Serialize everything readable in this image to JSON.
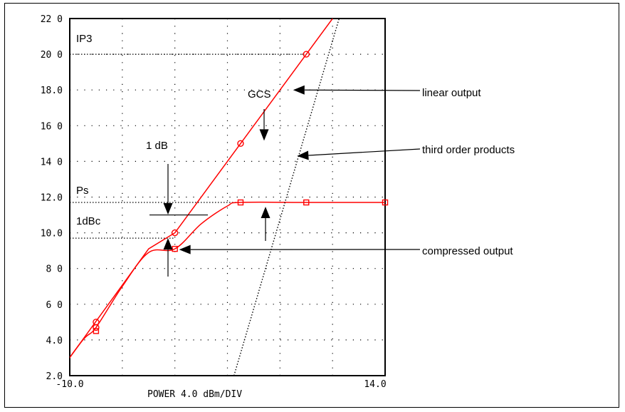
{
  "chart_data": {
    "type": "line",
    "title": "",
    "xlabel": "POWER 4.0 dBm/DIV",
    "ylabel": "",
    "xlim": [
      -10.0,
      14.0
    ],
    "ylim": [
      2.0,
      22.0
    ],
    "grid": true,
    "x_tick_labels": [
      "-10.0",
      "14.0"
    ],
    "y_tick_labels": [
      "2.0",
      "4.0",
      "6 0",
      "8 0",
      "10.0",
      "12.0",
      "14 0",
      "16 0",
      "18.0",
      "20 0",
      "22 0"
    ],
    "series": [
      {
        "key": "linear",
        "color": "#ff0000",
        "points": [
          [
            -11,
            2.0
          ],
          [
            -4,
            9.1
          ],
          [
            -2,
            10.0
          ],
          [
            3,
            15.0
          ],
          [
            8,
            20.0
          ],
          [
            10,
            22.0
          ]
        ]
      },
      {
        "key": "compressed",
        "color": "#ff0000",
        "points": [
          [
            -11,
            2.0
          ],
          [
            -9,
            4.0
          ],
          [
            -8,
            4.7
          ],
          [
            -6,
            7.0
          ],
          [
            -4,
            8.9
          ],
          [
            -2,
            9.1
          ],
          [
            0,
            10.5
          ],
          [
            2,
            11.5
          ],
          [
            3,
            11.7
          ],
          [
            8,
            11.7
          ],
          [
            11,
            11.7
          ],
          [
            14,
            11.7
          ]
        ]
      },
      {
        "key": "third-order",
        "color": "#000000",
        "style": "dotted",
        "points": [
          [
            2.5,
            2.0
          ],
          [
            10.5,
            22.0
          ]
        ]
      }
    ],
    "markers": [
      {
        "shape": "circle",
        "x": -8,
        "y": 5.0
      },
      {
        "shape": "circle",
        "x": -8,
        "y": 4.7
      },
      {
        "shape": "circle",
        "x": -2,
        "y": 10.0
      },
      {
        "shape": "circle",
        "x": 3,
        "y": 15.0
      },
      {
        "shape": "circle",
        "x": 8,
        "y": 20.0
      },
      {
        "shape": "square",
        "x": -8,
        "y": 4.5
      },
      {
        "shape": "square",
        "x": -2,
        "y": 9.1
      },
      {
        "shape": "square",
        "x": 3,
        "y": 11.7
      },
      {
        "shape": "square",
        "x": 8,
        "y": 11.7
      },
      {
        "shape": "square",
        "x": 14,
        "y": 11.7
      }
    ],
    "reference_lines": [
      {
        "key": "ip3",
        "y": 20.0
      },
      {
        "key": "ps",
        "y": 11.7
      },
      {
        "key": "dbc",
        "y": 9.7
      }
    ],
    "annotations": {
      "ip3": "IP3",
      "gcs": "GCS",
      "one_db": "1 dB",
      "ps": "Ps",
      "one_dbc": "1dBc"
    },
    "callouts": {
      "linear": "linear output",
      "third_order": "third order products",
      "compressed": "compressed output"
    }
  }
}
